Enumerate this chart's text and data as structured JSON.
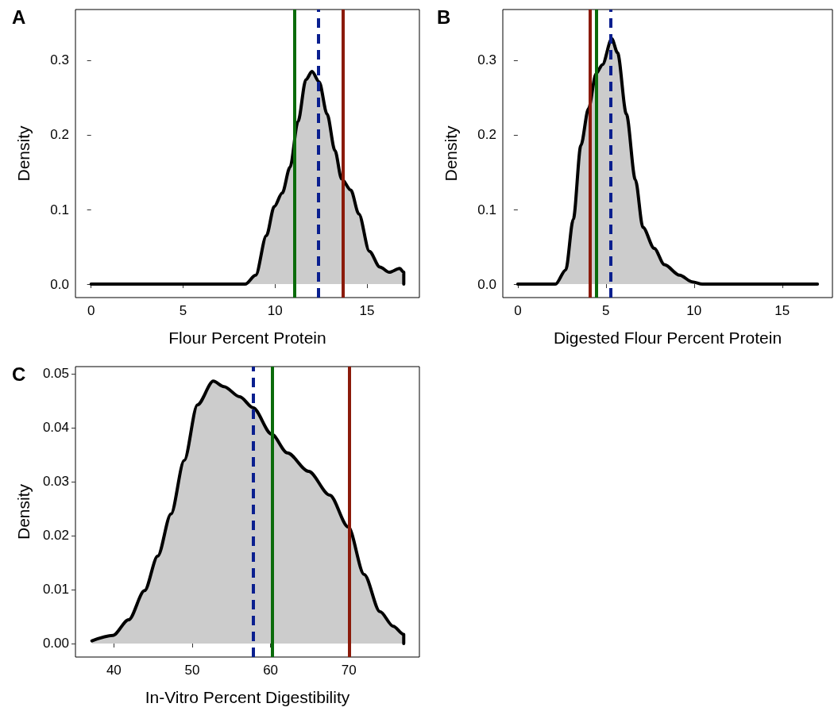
{
  "chart_data": [
    {
      "type": "area",
      "title": "A",
      "xlabel": "Flour Percent Protein",
      "ylabel": "Density",
      "grid": false,
      "marker": "none",
      "x": [
        0,
        8.38,
        8.95,
        9.53,
        9.96,
        10.39,
        10.82,
        11.25,
        11.68,
        12.01,
        12.4,
        12.83,
        13.26,
        13.62,
        14.12,
        14.56,
        15.13,
        15.7,
        16.21,
        16.78,
        17,
        17
      ],
      "series": [
        {
          "color": "#000000",
          "values": [
            0,
            0,
            0.012,
            0.065,
            0.104,
            0.122,
            0.157,
            0.218,
            0.274,
            0.285,
            0.271,
            0.228,
            0.179,
            0.141,
            0.126,
            0.094,
            0.044,
            0.023,
            0.016,
            0.021,
            0.016,
            0
          ]
        }
      ],
      "xlim": [
        -0.85,
        17.85
      ],
      "ylim": [
        -0.018,
        0.368
      ],
      "xticks": [
        0,
        5,
        10,
        15
      ],
      "yticks": [
        {
          "value": 0,
          "label": "0.0"
        },
        {
          "value": 0.1,
          "label": "0.1"
        },
        {
          "value": 0.2,
          "label": "0.2"
        },
        {
          "value": 0.3,
          "label": "0.3"
        }
      ],
      "ref_lines": [
        {
          "axis": "x",
          "value": 11.08,
          "color": "#0b6b0b",
          "line_style": "solid"
        },
        {
          "axis": "x",
          "value": 12.35,
          "color": "#0a1f8f",
          "line_style": "dashed"
        },
        {
          "axis": "x",
          "value": 13.69,
          "color": "#8b1a0a",
          "line_style": "solid"
        }
      ]
    },
    {
      "type": "area",
      "title": "B",
      "xlabel": "Digested Flour Percent Protein",
      "ylabel": "Density",
      "grid": false,
      "marker": "none",
      "x": [
        0,
        2.14,
        2.72,
        3.15,
        3.58,
        4.01,
        4.44,
        4.8,
        5.33,
        5.66,
        6.16,
        6.67,
        7.1,
        7.74,
        8.32,
        9.18,
        9.9,
        10.47,
        17
      ],
      "series": [
        {
          "color": "#000000",
          "values": [
            0,
            0,
            0.019,
            0.087,
            0.186,
            0.235,
            0.282,
            0.294,
            0.329,
            0.31,
            0.228,
            0.14,
            0.076,
            0.048,
            0.026,
            0.012,
            0.003,
            0,
            0
          ]
        }
      ],
      "xlim": [
        -0.85,
        17.85
      ],
      "ylim": [
        -0.018,
        0.368
      ],
      "xticks": [
        0,
        5,
        10,
        15
      ],
      "yticks": [
        {
          "value": 0,
          "label": "0.0"
        },
        {
          "value": 0.1,
          "label": "0.1"
        },
        {
          "value": 0.2,
          "label": "0.2"
        },
        {
          "value": 0.3,
          "label": "0.3"
        }
      ],
      "ref_lines": [
        {
          "axis": "x",
          "value": 4.11,
          "color": "#8b1a0a",
          "line_style": "solid"
        },
        {
          "axis": "x",
          "value": 4.44,
          "color": "#0b6b0b",
          "line_style": "solid"
        },
        {
          "axis": "x",
          "value": 5.26,
          "color": "#0a1f8f",
          "line_style": "dashed"
        }
      ]
    },
    {
      "type": "area",
      "title": "C",
      "xlabel": "In-Vitro Percent Digestibility",
      "ylabel": "Density",
      "grid": false,
      "marker": "none",
      "x": [
        37.2,
        39.87,
        41.89,
        43.92,
        45.6,
        47.29,
        48.98,
        50.67,
        52.7,
        54.05,
        56.08,
        57.76,
        60.13,
        62.16,
        64.86,
        67.56,
        69.92,
        71.95,
        73.97,
        75.66,
        77,
        77
      ],
      "series": [
        {
          "color": "#000000",
          "values": [
            0.0005,
            0.0015,
            0.0044,
            0.0098,
            0.0162,
            0.024,
            0.0339,
            0.0442,
            0.0486,
            0.0476,
            0.0457,
            0.0437,
            0.0388,
            0.0353,
            0.0319,
            0.0275,
            0.0216,
            0.0128,
            0.0059,
            0.0032,
            0.0017,
            0
          ]
        }
      ],
      "xlim": [
        35.1,
        79.0
      ],
      "ylim": [
        -0.0025,
        0.0513
      ],
      "xticks": [
        40,
        50,
        60,
        70
      ],
      "yticks": [
        {
          "value": 0,
          "label": "0.00"
        },
        {
          "value": 0.01,
          "label": "0.01"
        },
        {
          "value": 0.02,
          "label": "0.02"
        },
        {
          "value": 0.03,
          "label": "0.03"
        },
        {
          "value": 0.04,
          "label": "0.04"
        },
        {
          "value": 0.05,
          "label": "0.05"
        }
      ],
      "ref_lines": [
        {
          "axis": "x",
          "value": 57.83,
          "color": "#0a1f8f",
          "line_style": "dashed"
        },
        {
          "axis": "x",
          "value": 60.23,
          "color": "#0b6b0b",
          "line_style": "solid"
        },
        {
          "axis": "x",
          "value": 70.09,
          "color": "#8b1a0a",
          "line_style": "solid"
        }
      ]
    }
  ]
}
